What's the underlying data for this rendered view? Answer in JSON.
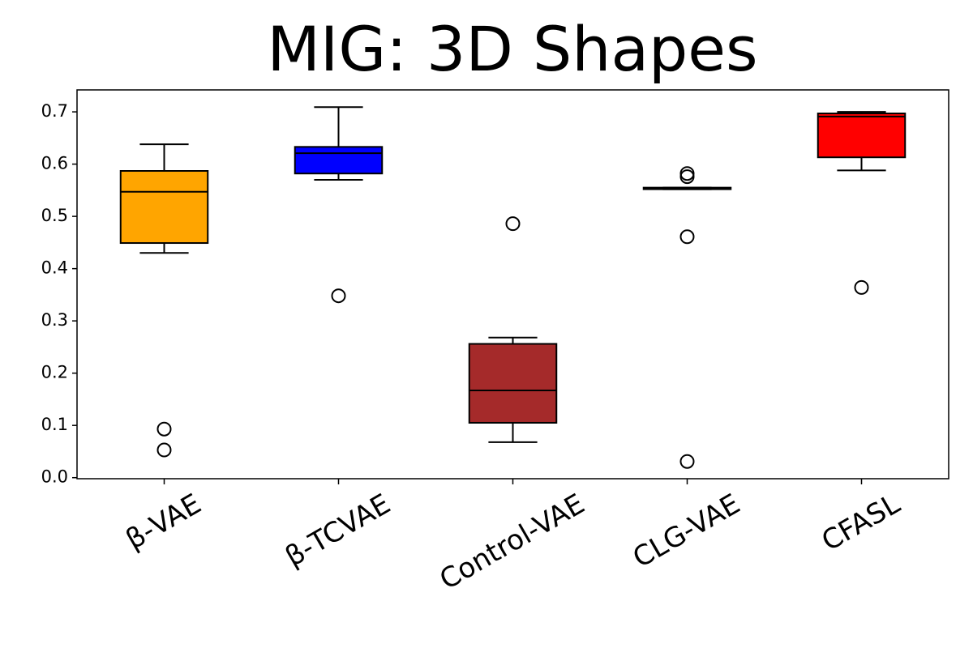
{
  "chart_data": {
    "type": "box",
    "title": "MIG: 3D Shapes",
    "categories": [
      "β-VAE",
      "β-TCVAE",
      "Control-VAE",
      "CLG-VAE",
      "CFASL"
    ],
    "boxes": [
      {
        "whislo": 0.43,
        "q1": 0.449,
        "median": 0.547,
        "q3": 0.587,
        "whishi": 0.638,
        "fliers": [
          0.093,
          0.053
        ],
        "color": "#ffa500"
      },
      {
        "whislo": 0.57,
        "q1": 0.582,
        "median": 0.621,
        "q3": 0.633,
        "whishi": 0.709,
        "fliers": [
          0.348
        ],
        "color": "#0000ff"
      },
      {
        "whislo": 0.068,
        "q1": 0.105,
        "median": 0.167,
        "q3": 0.256,
        "whishi": 0.268,
        "fliers": [
          0.486
        ],
        "color": "#a52a2a"
      },
      {
        "whislo": 0.552,
        "q1": 0.552,
        "median": 0.553,
        "q3": 0.555,
        "whishi": 0.555,
        "fliers": [
          0.582,
          0.576,
          0.461,
          0.031
        ],
        "color": "#ffffff"
      },
      {
        "whislo": 0.588,
        "q1": 0.613,
        "median": 0.691,
        "q3": 0.697,
        "whishi": 0.7,
        "fliers": [
          0.364
        ],
        "color": "#ff0000"
      }
    ],
    "ylim": [
      -0.002,
      0.742
    ],
    "yticks": [
      {
        "value": 0,
        "label": "0.0"
      },
      0.1,
      0.2,
      0.3,
      0.4,
      0.5,
      0.6,
      0.7
    ]
  }
}
